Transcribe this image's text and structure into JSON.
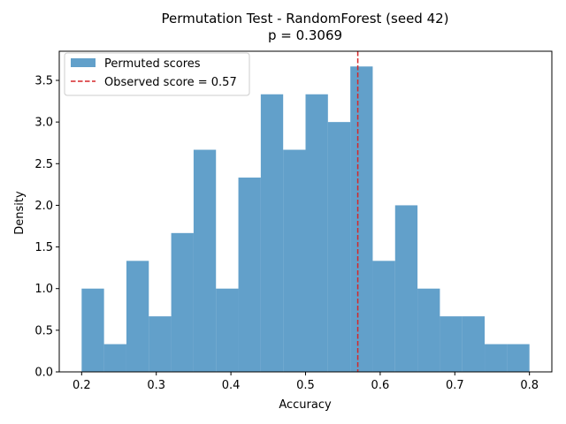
{
  "chart_data": {
    "type": "bar",
    "title": "Permutation Test - RandomForest (seed 42)",
    "subtitle": "p = 0.3069",
    "xlabel": "Accuracy",
    "ylabel": "Density",
    "xlim": [
      0.17,
      0.83
    ],
    "ylim": [
      0.0,
      3.85
    ],
    "x_ticks": [
      0.2,
      0.3,
      0.4,
      0.5,
      0.6,
      0.7,
      0.8
    ],
    "x_tick_labels": [
      "0.2",
      "0.3",
      "0.4",
      "0.5",
      "0.6",
      "0.7",
      "0.8"
    ],
    "y_ticks": [
      0.0,
      0.5,
      1.0,
      1.5,
      2.0,
      2.5,
      3.0,
      3.5
    ],
    "y_tick_labels": [
      "0.0",
      "0.5",
      "1.0",
      "1.5",
      "2.0",
      "2.5",
      "3.0",
      "3.5"
    ],
    "bin_edges": [
      0.2,
      0.23,
      0.26,
      0.29,
      0.32,
      0.35,
      0.38,
      0.41,
      0.44,
      0.47,
      0.5,
      0.53,
      0.56,
      0.59,
      0.62,
      0.65,
      0.68,
      0.71,
      0.74,
      0.77,
      0.8
    ],
    "series": [
      {
        "name": "Permuted scores",
        "color": "#1f77b4",
        "opacity": 0.7,
        "values": [
          1.0,
          0.333,
          1.333,
          0.667,
          1.667,
          2.667,
          1.0,
          2.333,
          3.333,
          2.667,
          3.333,
          3.0,
          3.667,
          1.333,
          2.0,
          1.0,
          0.667,
          0.667,
          0.333,
          0.333
        ]
      }
    ],
    "observed": {
      "name": "Observed score = 0.57",
      "value": 0.57,
      "color": "#d62728",
      "style": "dashed"
    },
    "legend_position": "top-left",
    "grid": false
  }
}
